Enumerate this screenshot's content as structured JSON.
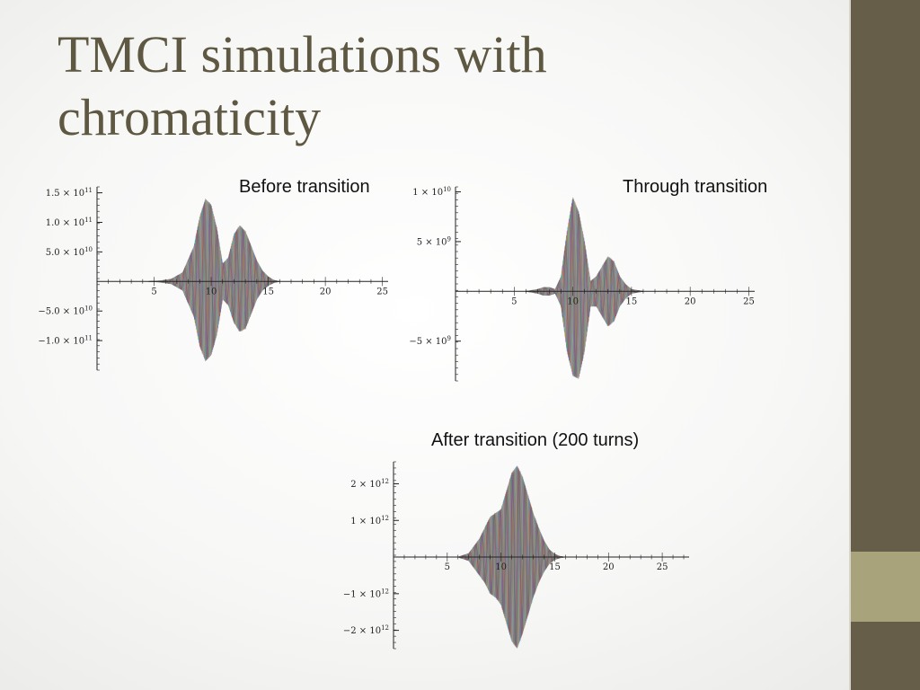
{
  "slide": {
    "title": "TMCI simulations with chromaticity",
    "colors": {
      "sidebar": "#665e48",
      "sidebar_accent": "#a9a37c",
      "title": "#5e5843"
    }
  },
  "chart_data": [
    {
      "type": "area",
      "caption": "Before transition",
      "xlim": [
        0,
        25.5
      ],
      "ylim": [
        -150000000000.0,
        160000000000.0
      ],
      "x_ticks": [
        {
          "v": 5,
          "label": "5"
        },
        {
          "v": 10,
          "label": "10"
        },
        {
          "v": 15,
          "label": "15"
        },
        {
          "v": 20,
          "label": "20"
        },
        {
          "v": 25,
          "label": "25"
        }
      ],
      "y_ticks": [
        {
          "v": 150000000000.0,
          "label": "1.5 × 10",
          "exp": "11"
        },
        {
          "v": 100000000000.0,
          "label": "1.0 × 10",
          "exp": "11"
        },
        {
          "v": 50000000000.0,
          "label": "5.0 × 10",
          "exp": "10"
        },
        {
          "v": -50000000000.0,
          "label": "−5.0 × 10",
          "exp": "10"
        },
        {
          "v": -100000000000.0,
          "label": "−1.0 × 10",
          "exp": "11"
        }
      ],
      "envelope": {
        "x": [
          4.5,
          5.5,
          6.5,
          7.5,
          8.5,
          9.0,
          9.5,
          10.0,
          10.5,
          11.0,
          11.5,
          12.0,
          12.5,
          13.0,
          13.5,
          14.0,
          14.5,
          15.0,
          15.5,
          16.0
        ],
        "upper": [
          0,
          1000000000.0,
          4000000000.0,
          15000000000.0,
          60000000000.0,
          110000000000.0,
          140000000000.0,
          130000000000.0,
          90000000000.0,
          30000000000.0,
          40000000000.0,
          80000000000.0,
          95000000000.0,
          85000000000.0,
          60000000000.0,
          35000000000.0,
          18000000000.0,
          8000000000.0,
          2000000000.0,
          0
        ],
        "lower": [
          0,
          -1000000000.0,
          -4000000000.0,
          -15000000000.0,
          -60000000000.0,
          -110000000000.0,
          -135000000000.0,
          -125000000000.0,
          -90000000000.0,
          -30000000000.0,
          -40000000000.0,
          -70000000000.0,
          -85000000000.0,
          -80000000000.0,
          -55000000000.0,
          -30000000000.0,
          -15000000000.0,
          -7000000000.0,
          -2000000000.0,
          0
        ]
      }
    },
    {
      "type": "area",
      "caption": "Through transition",
      "xlim": [
        0,
        25.5
      ],
      "ylim": [
        -9000000000.0,
        10500000000.0
      ],
      "x_ticks": [
        {
          "v": 5,
          "label": "5"
        },
        {
          "v": 10,
          "label": "10"
        },
        {
          "v": 15,
          "label": "15"
        },
        {
          "v": 20,
          "label": "20"
        },
        {
          "v": 25,
          "label": "25"
        }
      ],
      "y_ticks": [
        {
          "v": 10000000000.0,
          "label": "1 × 10",
          "exp": "10"
        },
        {
          "v": 5000000000.0,
          "label": "5 × 10",
          "exp": "9"
        },
        {
          "v": -5000000000.0,
          "label": "−5 × 10",
          "exp": "9"
        }
      ],
      "envelope": {
        "x": [
          6.0,
          7.0,
          7.5,
          8.0,
          8.5,
          9.0,
          9.5,
          10.0,
          10.5,
          11.0,
          11.5,
          12.0,
          12.5,
          13.0,
          13.5,
          14.0,
          14.5,
          15.0,
          15.5,
          16.0
        ],
        "upper": [
          0,
          200000000.0,
          400000000.0,
          400000000.0,
          200000000.0,
          1500000000.0,
          6000000000.0,
          9500000000.0,
          8000000000.0,
          5000000000.0,
          1000000000.0,
          1500000000.0,
          2500000000.0,
          3500000000.0,
          3000000000.0,
          1500000000.0,
          700000000.0,
          200000000.0,
          100000000.0,
          0
        ],
        "lower": [
          0,
          -200000000.0,
          -400000000.0,
          -400000000.0,
          -200000000.0,
          -1500000000.0,
          -6000000000.0,
          -8500000000.0,
          -8800000000.0,
          -6000000000.0,
          -1500000000.0,
          -1500000000.0,
          -2500000000.0,
          -3500000000.0,
          -3000000000.0,
          -1500000000.0,
          -700000000.0,
          -200000000.0,
          -100000000.0,
          0
        ]
      }
    },
    {
      "type": "area",
      "caption": "After transition (200 turns)",
      "xlim": [
        0,
        27.5
      ],
      "ylim": [
        -2500000000000.0,
        2600000000000.0
      ],
      "x_ticks": [
        {
          "v": 5,
          "label": "5"
        },
        {
          "v": 10,
          "label": "10"
        },
        {
          "v": 15,
          "label": "15"
        },
        {
          "v": 20,
          "label": "20"
        },
        {
          "v": 25,
          "label": "25"
        }
      ],
      "y_ticks": [
        {
          "v": 2000000000000.0,
          "label": "2 × 10",
          "exp": "12"
        },
        {
          "v": 1000000000000.0,
          "label": "1 × 10",
          "exp": "12"
        },
        {
          "v": -1000000000000.0,
          "label": "−1 × 10",
          "exp": "12"
        },
        {
          "v": -2000000000000.0,
          "label": "−2 × 10",
          "exp": "12"
        }
      ],
      "envelope": {
        "x": [
          6.0,
          7.0,
          8.0,
          8.5,
          9.0,
          9.5,
          10.0,
          10.5,
          11.0,
          11.5,
          12.0,
          12.5,
          13.0,
          13.5,
          14.0,
          14.5,
          15.0,
          15.5,
          16.0
        ],
        "upper": [
          0,
          100000000000.0,
          500000000000.0,
          800000000000.0,
          1100000000000.0,
          1200000000000.0,
          1300000000000.0,
          1800000000000.0,
          2300000000000.0,
          2500000000000.0,
          2200000000000.0,
          1700000000000.0,
          1200000000000.0,
          800000000000.0,
          450000000000.0,
          200000000000.0,
          80000000000.0,
          20000000000.0,
          0
        ],
        "lower": [
          0,
          -100000000000.0,
          -500000000000.0,
          -700000000000.0,
          -1000000000000.0,
          -1100000000000.0,
          -1300000000000.0,
          -1800000000000.0,
          -2300000000000.0,
          -2500000000000.0,
          -2100000000000.0,
          -1600000000000.0,
          -1100000000000.0,
          -700000000000.0,
          -400000000000.0,
          -180000000000.0,
          -70000000000.0,
          -20000000000.0,
          0
        ]
      }
    }
  ]
}
